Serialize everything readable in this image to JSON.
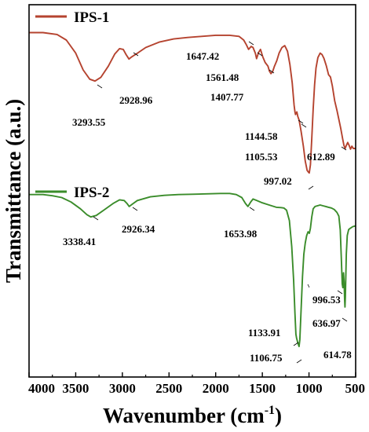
{
  "chart_data": {
    "type": "line",
    "xlabel_main": "Wavenumber (cm",
    "xlabel_sup": "-1",
    "xlabel_end": ")",
    "ylabel": "Transmittance (a.u.)",
    "xlim": [
      4000,
      500
    ],
    "x_ticks": [
      4000,
      3500,
      3000,
      2500,
      2000,
      1500,
      1000,
      500
    ],
    "x_tick_labels": [
      "4000",
      "3500",
      "3000",
      "2500",
      "2000",
      "1500",
      "1000",
      "500"
    ],
    "grid": false,
    "legend_placement": "inline-left-above-each-trace",
    "series": [
      {
        "name": "IPS-1",
        "color": "#b5432f",
        "points": [
          [
            4000,
            0.925
          ],
          [
            3850,
            0.925
          ],
          [
            3700,
            0.92
          ],
          [
            3600,
            0.905
          ],
          [
            3500,
            0.87
          ],
          [
            3420,
            0.825
          ],
          [
            3350,
            0.8
          ],
          [
            3293.55,
            0.795
          ],
          [
            3230,
            0.805
          ],
          [
            3150,
            0.835
          ],
          [
            3080,
            0.868
          ],
          [
            3030,
            0.882
          ],
          [
            2990,
            0.88
          ],
          [
            2960,
            0.866
          ],
          [
            2928.96,
            0.854
          ],
          [
            2900,
            0.86
          ],
          [
            2850,
            0.868
          ],
          [
            2750,
            0.885
          ],
          [
            2600,
            0.9
          ],
          [
            2450,
            0.908
          ],
          [
            2300,
            0.912
          ],
          [
            2150,
            0.915
          ],
          [
            2000,
            0.918
          ],
          [
            1850,
            0.918
          ],
          [
            1750,
            0.915
          ],
          [
            1700,
            0.905
          ],
          [
            1670,
            0.892
          ],
          [
            1647.42,
            0.88
          ],
          [
            1620,
            0.888
          ],
          [
            1600,
            0.885
          ],
          [
            1575,
            0.87
          ],
          [
            1561.48,
            0.855
          ],
          [
            1540,
            0.872
          ],
          [
            1520,
            0.88
          ],
          [
            1495,
            0.86
          ],
          [
            1470,
            0.845
          ],
          [
            1440,
            0.835
          ],
          [
            1425,
            0.822
          ],
          [
            1407.77,
            0.815
          ],
          [
            1390,
            0.82
          ],
          [
            1370,
            0.835
          ],
          [
            1345,
            0.85
          ],
          [
            1320,
            0.87
          ],
          [
            1290,
            0.885
          ],
          [
            1260,
            0.89
          ],
          [
            1230,
            0.875
          ],
          [
            1205,
            0.84
          ],
          [
            1180,
            0.79
          ],
          [
            1160,
            0.73
          ],
          [
            1150,
            0.712
          ],
          [
            1144.58,
            0.705
          ],
          [
            1130,
            0.712
          ],
          [
            1120,
            0.7
          ],
          [
            1105.53,
            0.69
          ],
          [
            1085,
            0.66
          ],
          [
            1060,
            0.62
          ],
          [
            1040,
            0.58
          ],
          [
            1020,
            0.555
          ],
          [
            1005,
            0.55
          ],
          [
            997.02,
            0.548
          ],
          [
            985,
            0.57
          ],
          [
            970,
            0.64
          ],
          [
            955,
            0.72
          ],
          [
            940,
            0.785
          ],
          [
            925,
            0.83
          ],
          [
            905,
            0.858
          ],
          [
            880,
            0.87
          ],
          [
            860,
            0.866
          ],
          [
            840,
            0.856
          ],
          [
            815,
            0.836
          ],
          [
            790,
            0.812
          ],
          [
            770,
            0.806
          ],
          [
            750,
            0.782
          ],
          [
            725,
            0.742
          ],
          [
            700,
            0.716
          ],
          [
            680,
            0.692
          ],
          [
            660,
            0.668
          ],
          [
            640,
            0.64
          ],
          [
            625,
            0.622
          ],
          [
            612.89,
            0.614
          ],
          [
            600,
            0.622
          ],
          [
            585,
            0.63
          ],
          [
            570,
            0.622
          ],
          [
            555,
            0.612
          ],
          [
            540,
            0.62
          ],
          [
            525,
            0.614
          ],
          [
            500,
            0.614
          ]
        ],
        "annotations": [
          {
            "text": "3293.55",
            "x": 3293.55
          },
          {
            "text": "2928.96",
            "x": 2928.96
          },
          {
            "text": "1647.42",
            "x": 1647.42
          },
          {
            "text": "1561.48",
            "x": 1561.48
          },
          {
            "text": "1407.77",
            "x": 1407.77
          },
          {
            "text": "1144.58",
            "x": 1144.58
          },
          {
            "text": "1105.53",
            "x": 1105.53
          },
          {
            "text": "997.02",
            "x": 997.02
          },
          {
            "text": "612.89",
            "x": 612.89
          }
        ]
      },
      {
        "name": "IPS-2",
        "color": "#3a8c2a",
        "points": [
          [
            4000,
            0.49
          ],
          [
            3850,
            0.49
          ],
          [
            3750,
            0.487
          ],
          [
            3650,
            0.482
          ],
          [
            3550,
            0.47
          ],
          [
            3450,
            0.452
          ],
          [
            3380,
            0.436
          ],
          [
            3338.41,
            0.43
          ],
          [
            3280,
            0.434
          ],
          [
            3200,
            0.448
          ],
          [
            3100,
            0.466
          ],
          [
            3030,
            0.476
          ],
          [
            2980,
            0.474
          ],
          [
            2950,
            0.466
          ],
          [
            2926.34,
            0.458
          ],
          [
            2890,
            0.465
          ],
          [
            2840,
            0.474
          ],
          [
            2700,
            0.484
          ],
          [
            2550,
            0.488
          ],
          [
            2400,
            0.49
          ],
          [
            2250,
            0.491
          ],
          [
            2100,
            0.492
          ],
          [
            1950,
            0.493
          ],
          [
            1850,
            0.493
          ],
          [
            1780,
            0.49
          ],
          [
            1720,
            0.482
          ],
          [
            1680,
            0.466
          ],
          [
            1653.98,
            0.458
          ],
          [
            1625,
            0.47
          ],
          [
            1600,
            0.478
          ],
          [
            1560,
            0.474
          ],
          [
            1500,
            0.468
          ],
          [
            1450,
            0.464
          ],
          [
            1400,
            0.46
          ],
          [
            1350,
            0.456
          ],
          [
            1300,
            0.455
          ],
          [
            1270,
            0.454
          ],
          [
            1240,
            0.448
          ],
          [
            1210,
            0.42
          ],
          [
            1185,
            0.35
          ],
          [
            1165,
            0.26
          ],
          [
            1150,
            0.17
          ],
          [
            1140,
            0.115
          ],
          [
            1133.91,
            0.105
          ],
          [
            1125,
            0.097
          ],
          [
            1115,
            0.088
          ],
          [
            1106.75,
            0.082
          ],
          [
            1098,
            0.1
          ],
          [
            1085,
            0.18
          ],
          [
            1070,
            0.27
          ],
          [
            1055,
            0.33
          ],
          [
            1040,
            0.36
          ],
          [
            1025,
            0.38
          ],
          [
            1010,
            0.39
          ],
          [
            996.53,
            0.386
          ],
          [
            985,
            0.4
          ],
          [
            970,
            0.43
          ],
          [
            955,
            0.452
          ],
          [
            935,
            0.458
          ],
          [
            910,
            0.46
          ],
          [
            880,
            0.462
          ],
          [
            850,
            0.46
          ],
          [
            820,
            0.458
          ],
          [
            790,
            0.456
          ],
          [
            760,
            0.454
          ],
          [
            730,
            0.45
          ],
          [
            700,
            0.442
          ],
          [
            680,
            0.432
          ],
          [
            665,
            0.395
          ],
          [
            652,
            0.31
          ],
          [
            644,
            0.25
          ],
          [
            636.97,
            0.24
          ],
          [
            630,
            0.28
          ],
          [
            624,
            0.255
          ],
          [
            618,
            0.205
          ],
          [
            614.78,
            0.188
          ],
          [
            610,
            0.215
          ],
          [
            600,
            0.33
          ],
          [
            590,
            0.38
          ],
          [
            575,
            0.396
          ],
          [
            555,
            0.4
          ],
          [
            530,
            0.404
          ],
          [
            500,
            0.406
          ]
        ],
        "annotations": [
          {
            "text": "3338.41",
            "x": 3338.41
          },
          {
            "text": "2926.34",
            "x": 2926.34
          },
          {
            "text": "1653.98",
            "x": 1653.98
          },
          {
            "text": "1133.91",
            "x": 1133.91
          },
          {
            "text": "1106.75",
            "x": 1106.75
          },
          {
            "text": "996.53",
            "x": 996.53
          },
          {
            "text": "636.97",
            "x": 636.97
          },
          {
            "text": "614.78",
            "x": 614.78
          }
        ]
      }
    ]
  }
}
